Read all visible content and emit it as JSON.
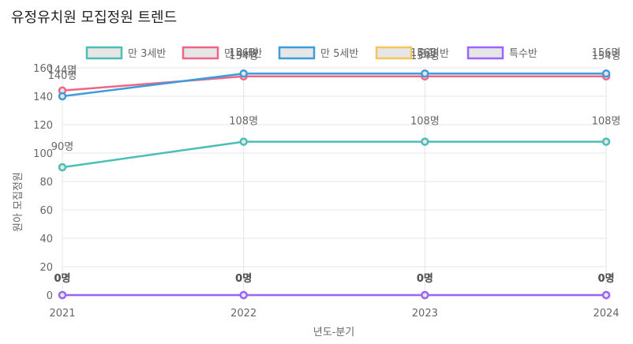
{
  "chart_data": {
    "type": "line",
    "title": "유정유치원 모집정원 트렌드",
    "xlabel": "년도-분기",
    "ylabel": "원아 모집정원",
    "categories": [
      "2021",
      "2022",
      "2023",
      "2024"
    ],
    "ylim": [
      0,
      160
    ],
    "yticks": [
      0,
      20,
      40,
      60,
      80,
      100,
      120,
      140,
      160
    ],
    "grid": true,
    "legend_position": "top",
    "value_suffix": "명",
    "series": [
      {
        "name": "만 3세반",
        "color": "#4bbfb5",
        "values": [
          90,
          108,
          108,
          108
        ]
      },
      {
        "name": "만 4세반",
        "color": "#f06585",
        "values": [
          144,
          154,
          154,
          154
        ]
      },
      {
        "name": "만 5세반",
        "color": "#3d9cdb",
        "values": [
          140,
          156,
          156,
          156
        ]
      },
      {
        "name": "혼합 반",
        "color": "#f5c55a",
        "values": [
          0,
          0,
          0,
          0
        ]
      },
      {
        "name": "특수반",
        "color": "#9966ff",
        "values": [
          0,
          0,
          0,
          0
        ]
      }
    ]
  }
}
